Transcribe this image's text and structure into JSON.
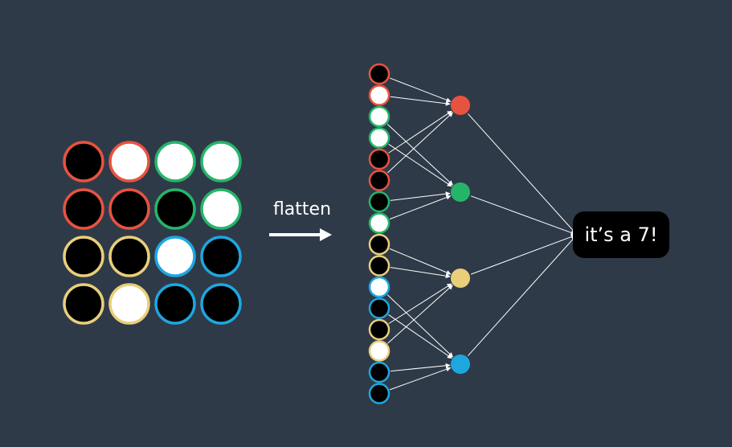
{
  "flatten_label": "flatten",
  "result_text": "it’s a 7!",
  "colors": {
    "background": "#2f3a48",
    "red": "#e8533f",
    "green": "#25b56a",
    "yellow": "#e9cf7a",
    "blue": "#1ea7df",
    "pixel_dark": "#000000",
    "pixel_light": "#ffffff",
    "connection": "#ffffff"
  },
  "grid": {
    "rows": 4,
    "cols": 4,
    "cells": [
      {
        "row": 0,
        "col": 0,
        "fill": "dark",
        "group": "red"
      },
      {
        "row": 0,
        "col": 1,
        "fill": "light",
        "group": "red"
      },
      {
        "row": 0,
        "col": 2,
        "fill": "light",
        "group": "green"
      },
      {
        "row": 0,
        "col": 3,
        "fill": "light",
        "group": "green"
      },
      {
        "row": 1,
        "col": 0,
        "fill": "dark",
        "group": "red"
      },
      {
        "row": 1,
        "col": 1,
        "fill": "dark",
        "group": "red"
      },
      {
        "row": 1,
        "col": 2,
        "fill": "dark",
        "group": "green"
      },
      {
        "row": 1,
        "col": 3,
        "fill": "light",
        "group": "green"
      },
      {
        "row": 2,
        "col": 0,
        "fill": "dark",
        "group": "yellow"
      },
      {
        "row": 2,
        "col": 1,
        "fill": "dark",
        "group": "yellow"
      },
      {
        "row": 2,
        "col": 2,
        "fill": "light",
        "group": "blue"
      },
      {
        "row": 2,
        "col": 3,
        "fill": "dark",
        "group": "blue"
      },
      {
        "row": 3,
        "col": 0,
        "fill": "dark",
        "group": "yellow"
      },
      {
        "row": 3,
        "col": 1,
        "fill": "light",
        "group": "yellow"
      },
      {
        "row": 3,
        "col": 2,
        "fill": "dark",
        "group": "blue"
      },
      {
        "row": 3,
        "col": 3,
        "fill": "dark",
        "group": "blue"
      }
    ]
  },
  "flattened": [
    {
      "fill": "dark",
      "group": "red"
    },
    {
      "fill": "light",
      "group": "red"
    },
    {
      "fill": "light",
      "group": "green"
    },
    {
      "fill": "light",
      "group": "green"
    },
    {
      "fill": "dark",
      "group": "red"
    },
    {
      "fill": "dark",
      "group": "red"
    },
    {
      "fill": "dark",
      "group": "green"
    },
    {
      "fill": "light",
      "group": "green"
    },
    {
      "fill": "dark",
      "group": "yellow"
    },
    {
      "fill": "dark",
      "group": "yellow"
    },
    {
      "fill": "light",
      "group": "blue"
    },
    {
      "fill": "dark",
      "group": "blue"
    },
    {
      "fill": "dark",
      "group": "yellow"
    },
    {
      "fill": "light",
      "group": "yellow"
    },
    {
      "fill": "dark",
      "group": "blue"
    },
    {
      "fill": "dark",
      "group": "blue"
    }
  ],
  "hidden_nodes": [
    {
      "group": "red"
    },
    {
      "group": "green"
    },
    {
      "group": "yellow"
    },
    {
      "group": "blue"
    }
  ]
}
